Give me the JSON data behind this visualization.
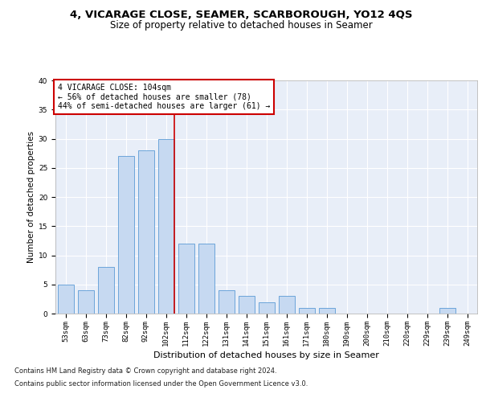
{
  "title": "4, VICARAGE CLOSE, SEAMER, SCARBOROUGH, YO12 4QS",
  "subtitle": "Size of property relative to detached houses in Seamer",
  "xlabel": "Distribution of detached houses by size in Seamer",
  "ylabel": "Number of detached properties",
  "bar_labels": [
    "53sqm",
    "63sqm",
    "73sqm",
    "82sqm",
    "92sqm",
    "102sqm",
    "112sqm",
    "122sqm",
    "131sqm",
    "141sqm",
    "151sqm",
    "161sqm",
    "171sqm",
    "180sqm",
    "190sqm",
    "200sqm",
    "210sqm",
    "220sqm",
    "229sqm",
    "239sqm",
    "249sqm"
  ],
  "bar_values": [
    5,
    4,
    8,
    27,
    28,
    30,
    12,
    12,
    4,
    3,
    2,
    3,
    1,
    1,
    0,
    0,
    0,
    0,
    0,
    1,
    0
  ],
  "bar_color": "#c6d9f1",
  "bar_edgecolor": "#5b9bd5",
  "plot_bg_color": "#e8eef8",
  "vline_x": 5.4,
  "vline_color": "#cc0000",
  "annotation_lines": [
    "4 VICARAGE CLOSE: 104sqm",
    "← 56% of detached houses are smaller (78)",
    "44% of semi-detached houses are larger (61) →"
  ],
  "footnote1": "Contains HM Land Registry data © Crown copyright and database right 2024.",
  "footnote2": "Contains public sector information licensed under the Open Government Licence v3.0.",
  "ylim": [
    0,
    40
  ],
  "yticks": [
    0,
    5,
    10,
    15,
    20,
    25,
    30,
    35,
    40
  ],
  "title_fontsize": 9.5,
  "subtitle_fontsize": 8.5,
  "xlabel_fontsize": 8,
  "ylabel_fontsize": 7.5,
  "tick_fontsize": 6.5,
  "annotation_fontsize": 7,
  "footnote_fontsize": 6
}
